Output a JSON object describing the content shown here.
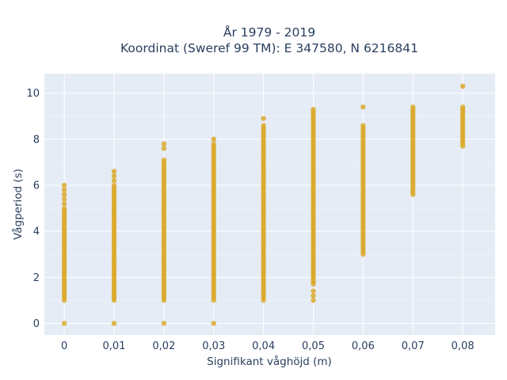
{
  "chart_data": {
    "type": "scatter",
    "title_line1": "År 1979 - 2019",
    "title_line2": "Koordinat (Sweref 99 TM): E 347580, N 6216841",
    "xlabel": "Signifikant våghöjd (m)",
    "ylabel": "Vågperiod (s)",
    "x_tick_labels": [
      "0",
      "0,01",
      "0,02",
      "0,03",
      "0,04",
      "0,05",
      "0,06",
      "0,07",
      "0,08"
    ],
    "y_tick_labels": [
      "0",
      "2",
      "4",
      "6",
      "8",
      "10"
    ],
    "xlim": [
      -0.004,
      0.0865
    ],
    "ylim": [
      -0.5,
      10.85
    ],
    "grid": true,
    "marker_color": "#DAA520",
    "plot_background": "#E5ECF6",
    "series": [
      {
        "x": 0.0,
        "ymin": 1.0,
        "ymax": 5.0,
        "isolated": [
          0,
          5.2,
          5.4,
          5.6,
          5.8,
          6.0
        ]
      },
      {
        "x": 0.01,
        "ymin": 1.0,
        "ymax": 6.0,
        "isolated": [
          0,
          6.2,
          6.4,
          6.6
        ]
      },
      {
        "x": 0.02,
        "ymin": 1.0,
        "ymax": 7.1,
        "isolated": [
          0,
          7.6,
          7.8
        ]
      },
      {
        "x": 0.03,
        "ymin": 1.0,
        "ymax": 7.8,
        "isolated": [
          0,
          8.0
        ]
      },
      {
        "x": 0.04,
        "ymin": 1.0,
        "ymax": 8.6,
        "isolated": [
          8.9
        ]
      },
      {
        "x": 0.05,
        "ymin": 1.7,
        "ymax": 9.3,
        "isolated": [
          1.0,
          1.2,
          1.4
        ]
      },
      {
        "x": 0.06,
        "ymin": 3.0,
        "ymax": 8.6,
        "isolated": [
          9.4
        ]
      },
      {
        "x": 0.07,
        "ymin": 5.6,
        "ymax": 9.4,
        "isolated": []
      },
      {
        "x": 0.08,
        "ymin": 7.7,
        "ymax": 9.4,
        "isolated": [
          10.3
        ]
      }
    ]
  }
}
